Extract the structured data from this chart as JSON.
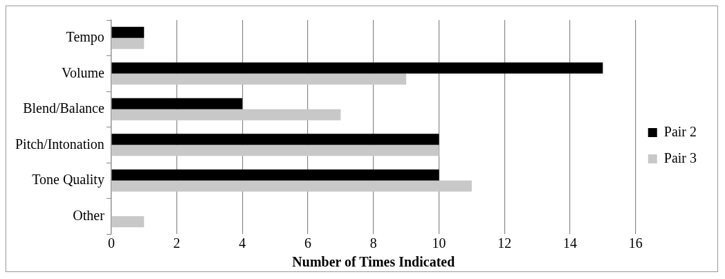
{
  "chart_data": {
    "type": "bar",
    "orientation": "horizontal",
    "xlabel": "Number of Times Indicated",
    "categories": [
      "Tempo",
      "Volume",
      "Blend/Balance",
      "Pitch/Intonation",
      "Tone Quality",
      "Other"
    ],
    "series": [
      {
        "name": "Pair 2",
        "color": "#000000",
        "values": [
          1,
          15,
          4,
          10,
          10,
          0
        ]
      },
      {
        "name": "Pair 3",
        "color": "#c8c8c8",
        "values": [
          1,
          9,
          7,
          10,
          11,
          1
        ]
      }
    ],
    "xlim": [
      0,
      16
    ],
    "xticks": [
      0,
      2,
      4,
      6,
      8,
      10,
      12,
      14,
      16
    ],
    "grid": "x",
    "legend": "right"
  }
}
